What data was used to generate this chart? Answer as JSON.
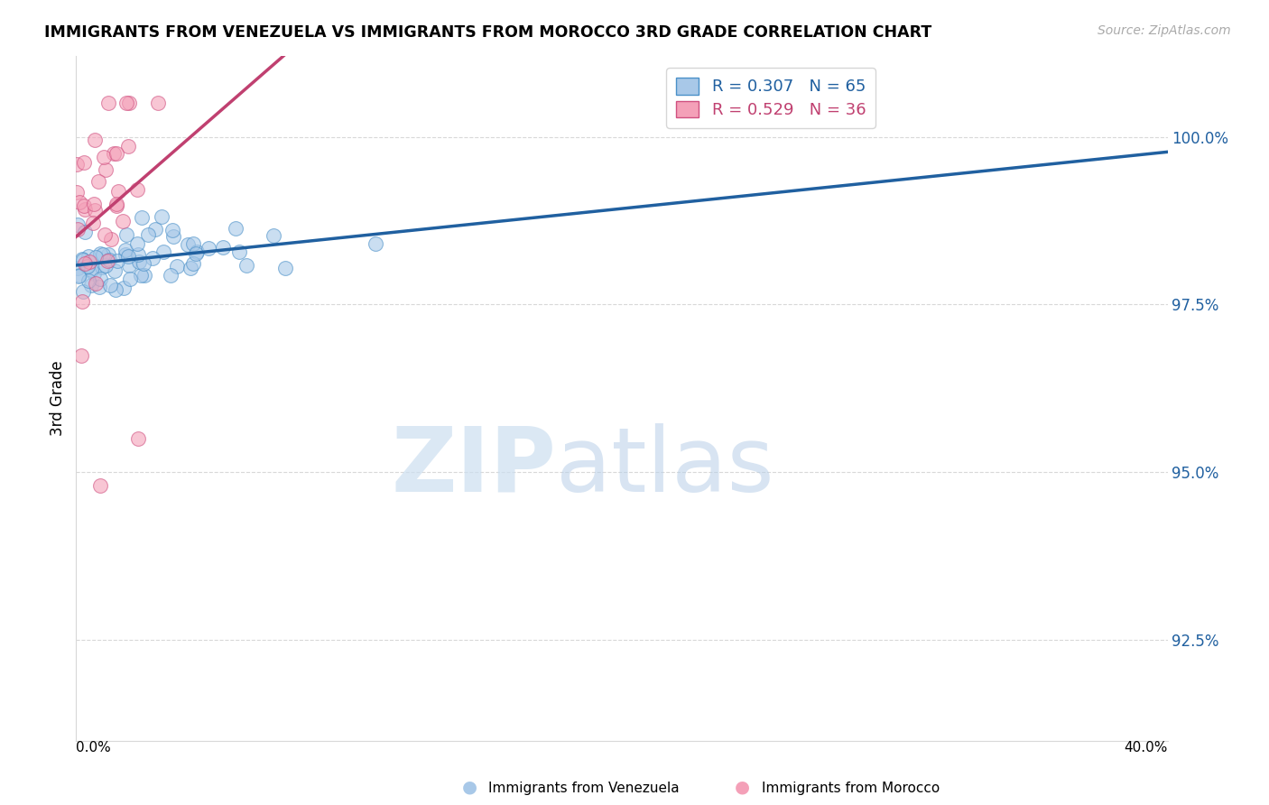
{
  "title": "IMMIGRANTS FROM VENEZUELA VS IMMIGRANTS FROM MOROCCO 3RD GRADE CORRELATION CHART",
  "source": "Source: ZipAtlas.com",
  "ylabel": "3rd Grade",
  "ytick_vals": [
    92.5,
    95.0,
    97.5,
    100.0
  ],
  "ytick_labels": [
    "92.5%",
    "95.0%",
    "97.5%",
    "100.0%"
  ],
  "xlim": [
    0.0,
    40.0
  ],
  "ylim": [
    91.0,
    101.2
  ],
  "blue_color": "#a8c8e8",
  "pink_color": "#f4a0b8",
  "blue_edge_color": "#4a90c8",
  "pink_edge_color": "#d05080",
  "blue_line_color": "#2060a0",
  "pink_line_color": "#c04070",
  "background_color": "#ffffff",
  "grid_color": "#d8d8d8",
  "watermark_zip_color": "#ccdff0",
  "watermark_atlas_color": "#b8cfe8"
}
